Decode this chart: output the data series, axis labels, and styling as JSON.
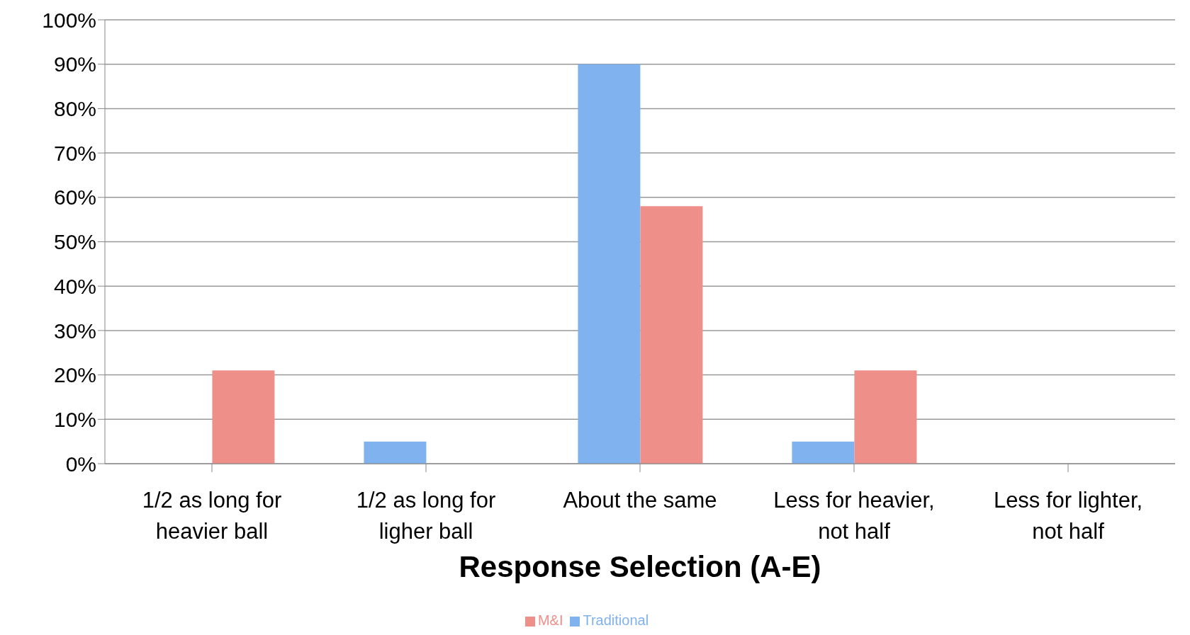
{
  "chart_data": {
    "type": "bar",
    "xlabel": "Response Selection (A-E)",
    "categories": [
      "1/2 as long for heavier ball",
      "1/2 as long for ligher ball",
      "About the same",
      "Less for heavier, not half",
      "Less for lighter, not half"
    ],
    "series": [
      {
        "name": "Traditional",
        "color": "#7fb2ee",
        "values": [
          0,
          5,
          90,
          5,
          0
        ]
      },
      {
        "name": "M&I",
        "color": "#ef8f8a",
        "values": [
          21,
          0,
          58,
          21,
          0
        ]
      }
    ],
    "ylim": [
      0,
      100
    ],
    "yticks": [
      {
        "value": 0,
        "label": "0%"
      },
      {
        "value": 10,
        "label": "10%"
      },
      {
        "value": 20,
        "label": "20%"
      },
      {
        "value": 30,
        "label": "30%"
      },
      {
        "value": 40,
        "label": "40%"
      },
      {
        "value": 50,
        "label": "50%"
      },
      {
        "value": 60,
        "label": "60%"
      },
      {
        "value": 70,
        "label": "70%"
      },
      {
        "value": 80,
        "label": "80%"
      },
      {
        "value": 90,
        "label": "90%"
      },
      {
        "value": 100,
        "label": "100%"
      }
    ],
    "grid": "y",
    "legend": "bottom"
  }
}
